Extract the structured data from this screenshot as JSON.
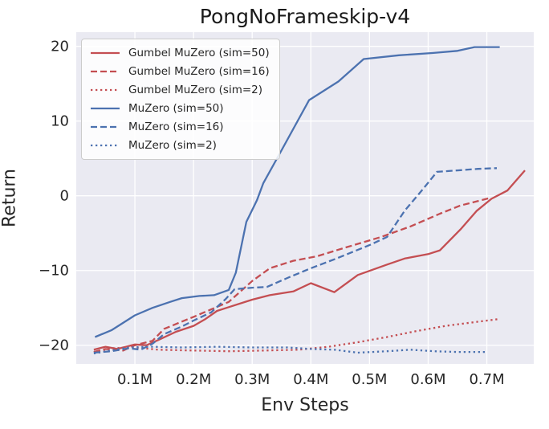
{
  "chart_data": {
    "type": "line",
    "title": "PongNoFrameskip-v4",
    "xlabel": "Env Steps",
    "ylabel": "Return",
    "xlim": [
      0,
      0.78
    ],
    "ylim": [
      -22.5,
      21.9
    ],
    "grid": true,
    "plot_background": "#eaeaf2",
    "gridline_color": "#ffffff",
    "legend_position": "upper left",
    "x_ticks": [
      0.1,
      0.2,
      0.3,
      0.4,
      0.5,
      0.6,
      0.7
    ],
    "x_tick_labels": [
      "0.1M",
      "0.2M",
      "0.3M",
      "0.4M",
      "0.5M",
      "0.6M",
      "0.7M"
    ],
    "y_ticks": [
      20,
      10,
      0,
      -10,
      -20
    ],
    "y_tick_labels": [
      "20",
      "10",
      "0",
      "−10",
      "−20"
    ],
    "colors": {
      "gumbel_red": "#c44e52",
      "muzero_blue": "#4c72b0"
    },
    "series": [
      {
        "name": "Gumbel MuZero (sim=50)",
        "color": "#c44e52",
        "style": "solid",
        "points": [
          [
            0.03,
            -20.6
          ],
          [
            0.05,
            -20.2
          ],
          [
            0.07,
            -20.5
          ],
          [
            0.1,
            -19.9
          ],
          [
            0.12,
            -20.0
          ],
          [
            0.14,
            -19.3
          ],
          [
            0.17,
            -18.2
          ],
          [
            0.2,
            -17.4
          ],
          [
            0.22,
            -16.5
          ],
          [
            0.24,
            -15.4
          ],
          [
            0.26,
            -14.9
          ],
          [
            0.3,
            -13.9
          ],
          [
            0.33,
            -13.3
          ],
          [
            0.37,
            -12.8
          ],
          [
            0.4,
            -11.7
          ],
          [
            0.44,
            -12.9
          ],
          [
            0.48,
            -10.6
          ],
          [
            0.53,
            -9.2
          ],
          [
            0.56,
            -8.4
          ],
          [
            0.6,
            -7.8
          ],
          [
            0.62,
            -7.3
          ],
          [
            0.655,
            -4.5
          ],
          [
            0.683,
            -2.0
          ],
          [
            0.708,
            -0.4
          ],
          [
            0.735,
            0.7
          ],
          [
            0.765,
            3.4
          ]
        ]
      },
      {
        "name": "Gumbel MuZero (sim=16)",
        "color": "#c44e52",
        "style": "dashed",
        "points": [
          [
            0.03,
            -20.9
          ],
          [
            0.05,
            -20.5
          ],
          [
            0.08,
            -20.7
          ],
          [
            0.1,
            -20.0
          ],
          [
            0.13,
            -19.4
          ],
          [
            0.15,
            -17.8
          ],
          [
            0.2,
            -16.2
          ],
          [
            0.23,
            -15.2
          ],
          [
            0.26,
            -14.2
          ],
          [
            0.3,
            -11.4
          ],
          [
            0.33,
            -9.7
          ],
          [
            0.37,
            -8.7
          ],
          [
            0.41,
            -8.1
          ],
          [
            0.46,
            -6.9
          ],
          [
            0.52,
            -5.5
          ],
          [
            0.57,
            -4.1
          ],
          [
            0.62,
            -2.4
          ],
          [
            0.655,
            -1.3
          ],
          [
            0.705,
            -0.3
          ]
        ]
      },
      {
        "name": "Gumbel MuZero (sim=2)",
        "color": "#c44e52",
        "style": "dotted",
        "points": [
          [
            0.03,
            -20.9
          ],
          [
            0.06,
            -20.4
          ],
          [
            0.1,
            -20.3
          ],
          [
            0.14,
            -20.6
          ],
          [
            0.2,
            -20.7
          ],
          [
            0.26,
            -20.8
          ],
          [
            0.32,
            -20.7
          ],
          [
            0.38,
            -20.6
          ],
          [
            0.43,
            -20.2
          ],
          [
            0.48,
            -19.6
          ],
          [
            0.53,
            -18.9
          ],
          [
            0.58,
            -18.1
          ],
          [
            0.63,
            -17.4
          ],
          [
            0.68,
            -16.9
          ],
          [
            0.72,
            -16.5
          ]
        ]
      },
      {
        "name": "MuZero (sim=50)",
        "color": "#4c72b0",
        "style": "solid",
        "points": [
          [
            0.032,
            -18.9
          ],
          [
            0.06,
            -18.0
          ],
          [
            0.1,
            -16.0
          ],
          [
            0.13,
            -15.0
          ],
          [
            0.16,
            -14.2
          ],
          [
            0.18,
            -13.7
          ],
          [
            0.21,
            -13.4
          ],
          [
            0.235,
            -13.3
          ],
          [
            0.26,
            -12.6
          ],
          [
            0.272,
            -10.3
          ],
          [
            0.29,
            -3.5
          ],
          [
            0.308,
            -0.6
          ],
          [
            0.319,
            1.7
          ],
          [
            0.35,
            6.1
          ],
          [
            0.397,
            12.8
          ],
          [
            0.447,
            15.3
          ],
          [
            0.49,
            18.3
          ],
          [
            0.55,
            18.8
          ],
          [
            0.607,
            19.1
          ],
          [
            0.65,
            19.4
          ],
          [
            0.679,
            19.9
          ],
          [
            0.722,
            19.9
          ]
        ]
      },
      {
        "name": "MuZero (sim=16)",
        "color": "#4c72b0",
        "style": "dashed",
        "points": [
          [
            0.03,
            -21.0
          ],
          [
            0.06,
            -20.8
          ],
          [
            0.09,
            -20.4
          ],
          [
            0.11,
            -20.6
          ],
          [
            0.13,
            -19.8
          ],
          [
            0.15,
            -18.5
          ],
          [
            0.18,
            -17.5
          ],
          [
            0.2,
            -16.7
          ],
          [
            0.23,
            -15.6
          ],
          [
            0.255,
            -13.8
          ],
          [
            0.27,
            -12.5
          ],
          [
            0.3,
            -12.3
          ],
          [
            0.325,
            -12.2
          ],
          [
            0.36,
            -11.0
          ],
          [
            0.4,
            -9.7
          ],
          [
            0.44,
            -8.5
          ],
          [
            0.5,
            -6.6
          ],
          [
            0.53,
            -5.5
          ],
          [
            0.56,
            -2.0
          ],
          [
            0.59,
            0.8
          ],
          [
            0.615,
            3.2
          ],
          [
            0.65,
            3.4
          ],
          [
            0.685,
            3.6
          ],
          [
            0.717,
            3.7
          ]
        ]
      },
      {
        "name": "MuZero (sim=2)",
        "color": "#4c72b0",
        "style": "dotted",
        "points": [
          [
            0.03,
            -21.1
          ],
          [
            0.06,
            -20.7
          ],
          [
            0.09,
            -20.3
          ],
          [
            0.13,
            -20.2
          ],
          [
            0.18,
            -20.3
          ],
          [
            0.24,
            -20.2
          ],
          [
            0.3,
            -20.3
          ],
          [
            0.36,
            -20.3
          ],
          [
            0.4,
            -20.5
          ],
          [
            0.44,
            -20.6
          ],
          [
            0.48,
            -21.0
          ],
          [
            0.53,
            -20.8
          ],
          [
            0.57,
            -20.6
          ],
          [
            0.61,
            -20.8
          ],
          [
            0.65,
            -20.9
          ],
          [
            0.7,
            -20.9
          ]
        ]
      }
    ]
  }
}
